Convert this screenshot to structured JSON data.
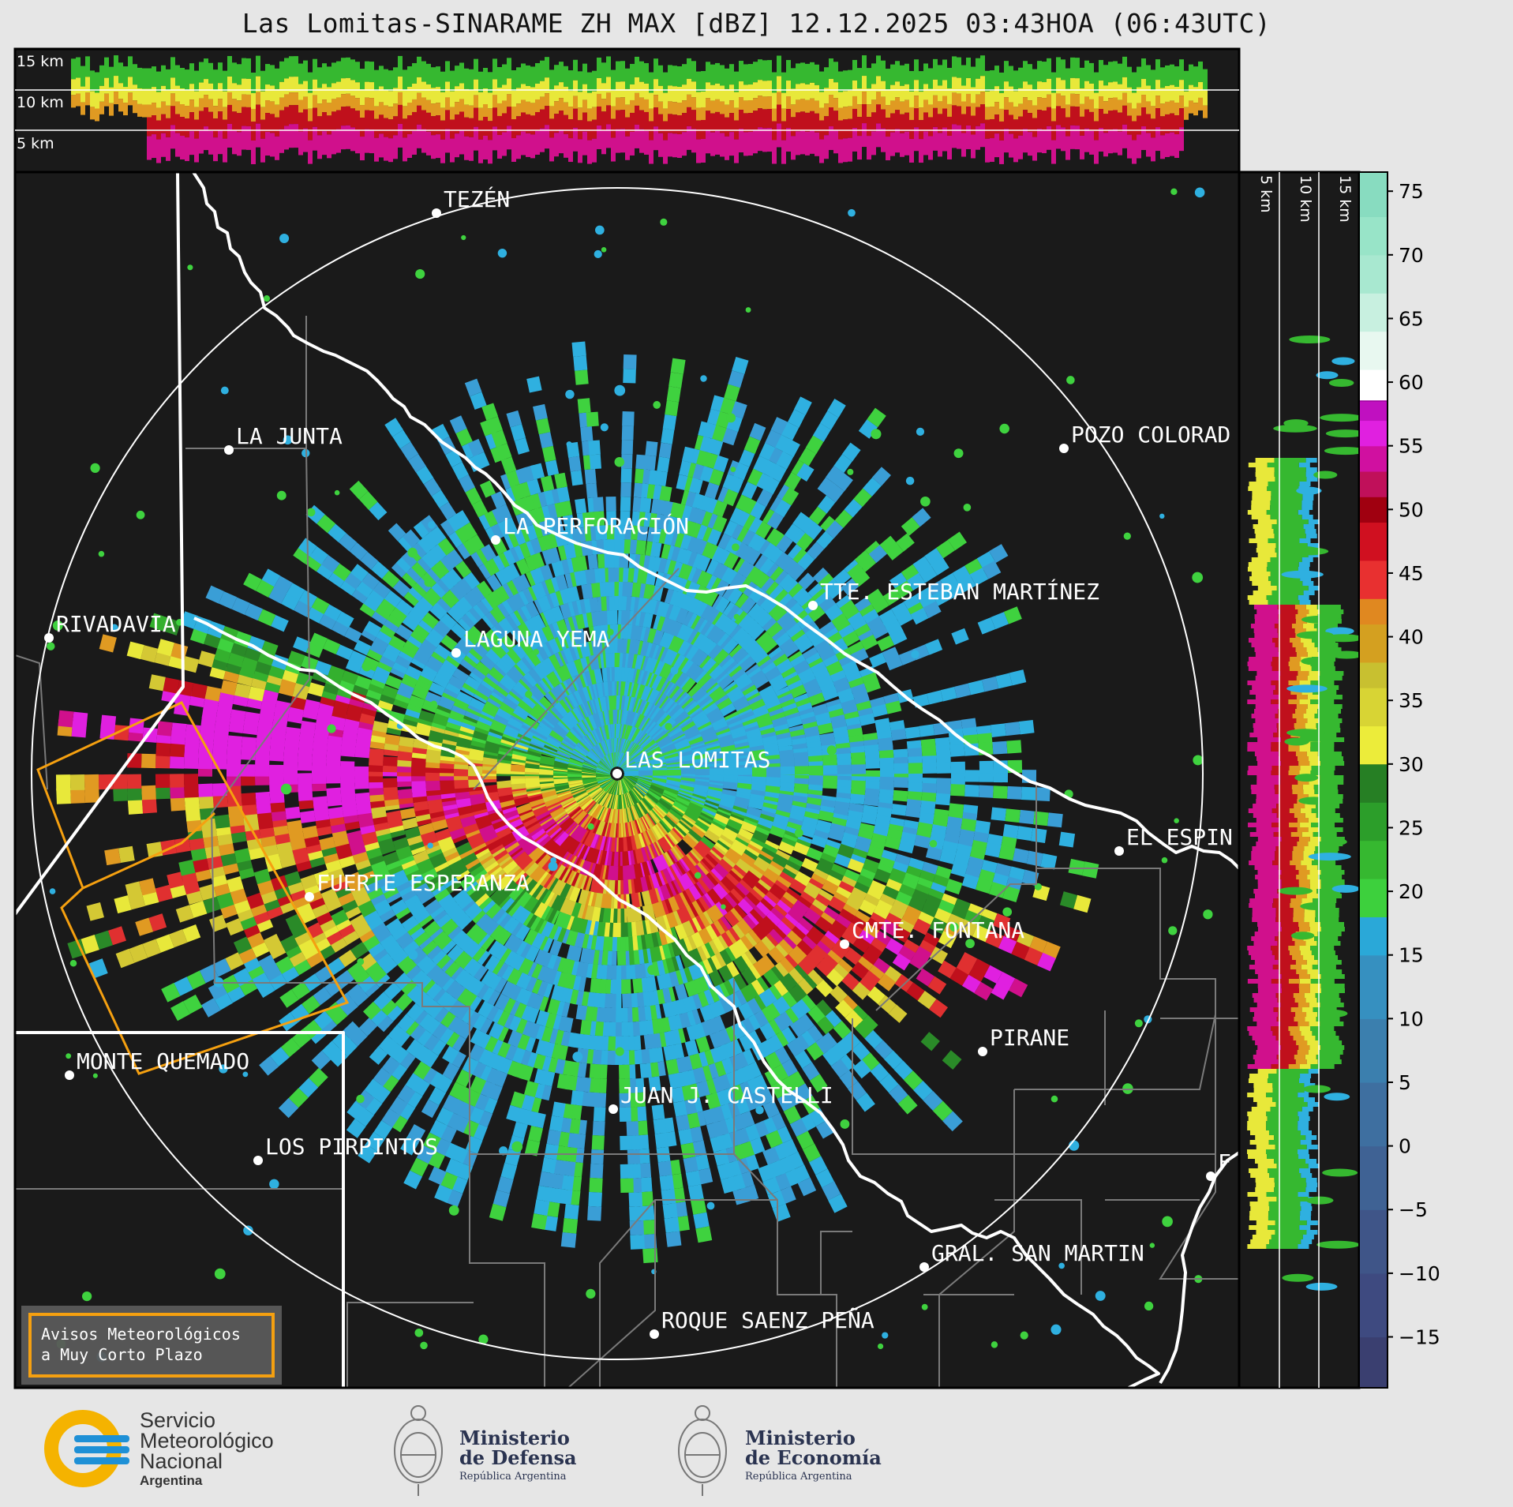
{
  "title": "Las Lomitas-SINARAME ZH MAX [dBZ] 12.12.2025 03:43HOA (06:43UTC)",
  "top_profile_labels": [
    "15 km",
    "10 km",
    "5 km"
  ],
  "side_profile_labels": [
    "5 km",
    "10 km",
    "15 km"
  ],
  "towns": [
    {
      "name": "TEZÉN"
    },
    {
      "name": "LA JUNTA"
    },
    {
      "name": "POZO COLORAD"
    },
    {
      "name": "LA PERFORACIÓN"
    },
    {
      "name": "TTE. ESTEBAN MARTÍNEZ"
    },
    {
      "name": "RIVADAVIA"
    },
    {
      "name": "LAGUNA YEMA"
    },
    {
      "name": "LAS LOMITAS"
    },
    {
      "name": "EL ESPIN"
    },
    {
      "name": "FUERTE ESPERANZA"
    },
    {
      "name": "CMTE. FONTANA"
    },
    {
      "name": "PIRANE"
    },
    {
      "name": "MONTE QUEMADO"
    },
    {
      "name": "JUAN J. CASTELLI"
    },
    {
      "name": "LOS PIRPINTOS"
    },
    {
      "name": "F"
    },
    {
      "name": "GRAL. SAN MARTIN"
    },
    {
      "name": "ROQUE SAENZ PEÑA"
    }
  ],
  "colorbar": {
    "unit": "dBZ",
    "ticks": [
      "75",
      "70",
      "65",
      "60",
      "55",
      "50",
      "45",
      "40",
      "35",
      "30",
      "25",
      "20",
      "15",
      "10",
      "5",
      "0",
      "−5",
      "−10",
      "−15"
    ],
    "min": -19,
    "max": 76.5
  },
  "warning_box": {
    "line1": "Avisos Meteorológicos",
    "line2": "a Muy Corto Plazo"
  },
  "logos": {
    "smn": {
      "line1": "Servicio",
      "line2": "Meteorológico",
      "line3": "Nacional",
      "line4": "Argentina"
    },
    "defensa": {
      "line1": "Ministerio",
      "line2": "de Defensa",
      "line3": "República Argentina"
    },
    "economia": {
      "line1": "Ministerio",
      "line2": "de Economía",
      "line3": "República Argentina"
    }
  },
  "colors": {
    "map_bg": "#1a1a1a",
    "accent_orange": "#f5a010",
    "smn_blue": "#1e90d6",
    "smn_yellow": "#f5b300"
  }
}
